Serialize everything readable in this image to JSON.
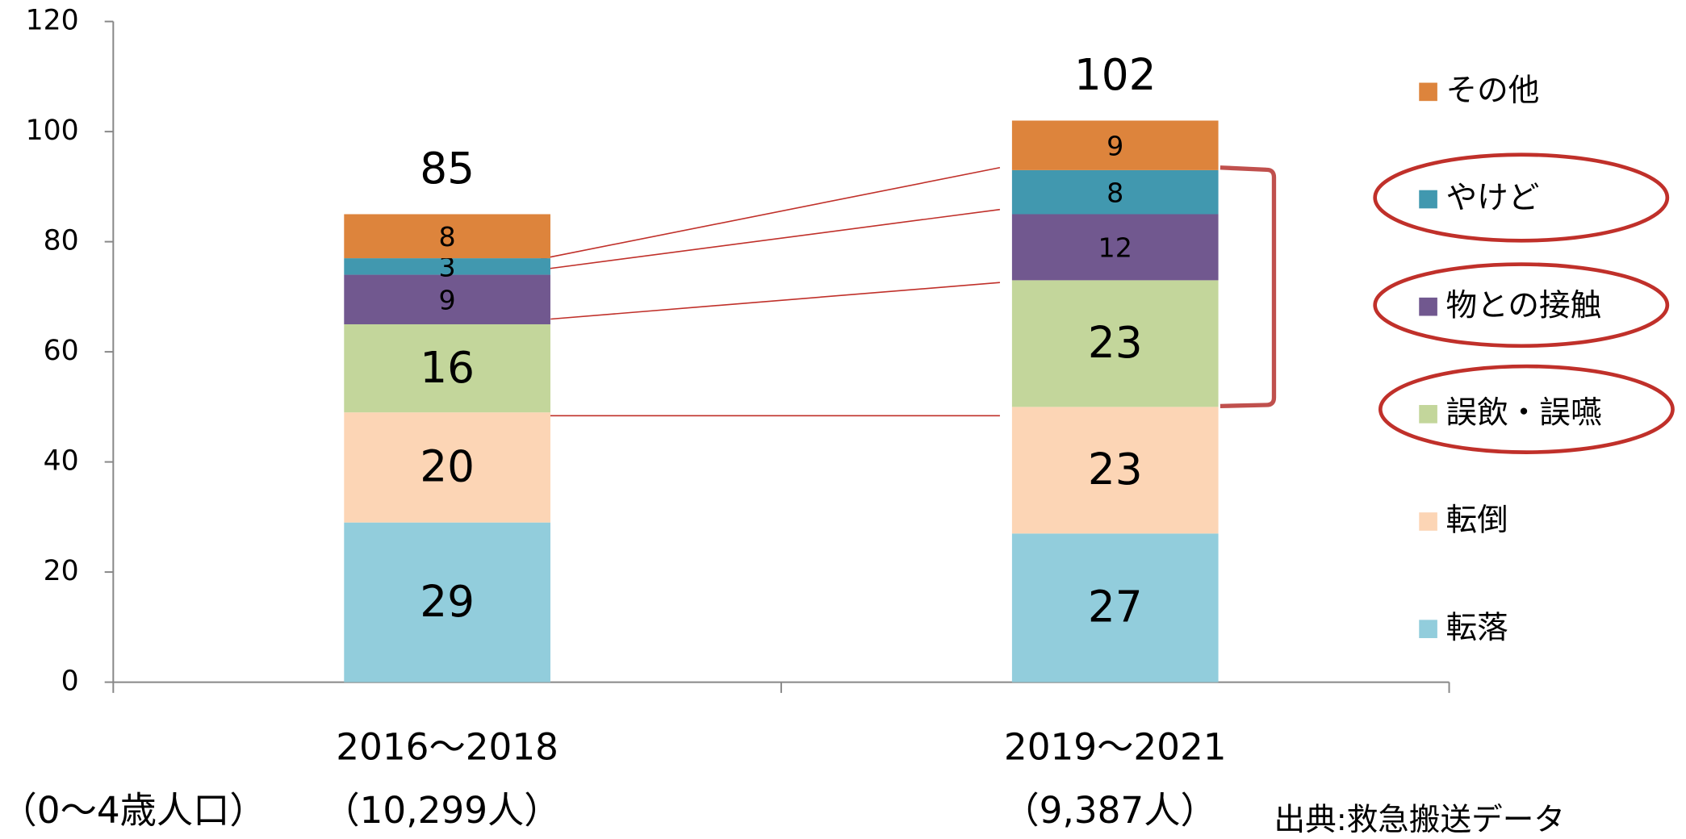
{
  "chart_data": {
    "type": "stacked_bar",
    "categories": [
      "2016〜2018",
      "2019〜2021"
    ],
    "category_notes": [
      "（10,299人）",
      "（9,387人）"
    ],
    "population_label": "（0〜4歳人口）",
    "source": "出典:救急搬送データ",
    "series": [
      {
        "name": "転落",
        "color": "#92cddc",
        "values": [
          29,
          27
        ]
      },
      {
        "name": "転倒",
        "color": "#fcd5b5",
        "values": [
          20,
          23
        ]
      },
      {
        "name": "誤飲・誤嚥",
        "color": "#c3d69b",
        "values": [
          16,
          23
        ]
      },
      {
        "name": "物との接触",
        "color": "#71588f",
        "values": [
          9,
          12
        ]
      },
      {
        "name": "やけど",
        "color": "#4198af",
        "values": [
          3,
          8
        ]
      },
      {
        "name": "その他",
        "color": "#dd843c",
        "values": [
          8,
          9
        ]
      }
    ],
    "totals": [
      85,
      102
    ],
    "ylim": [
      0,
      120
    ],
    "yticks": [
      0,
      20,
      40,
      60,
      80,
      100,
      120
    ],
    "legend": "right"
  }
}
